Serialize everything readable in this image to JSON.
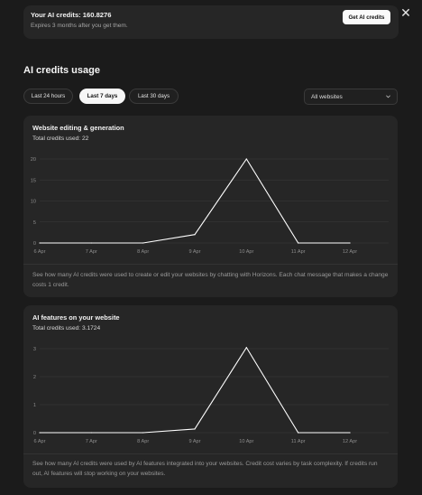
{
  "credits": {
    "title": "Your AI credits: 160.8276",
    "subtitle": "Expires 3 months after you get them.",
    "get_button": "Get AI credits"
  },
  "section_title": "AI credits usage",
  "ranges": [
    "Last 24 hours",
    "Last 7 days",
    "Last 30 days"
  ],
  "active_range": "Last 7 days",
  "website_filter": "All websites",
  "panels": [
    {
      "title": "Website editing & generation",
      "total": "Total credits used: 22",
      "description": "See how many AI credits were used to create or edit your websites by chatting with Horizons. Each chat message that makes a change costs 1 credit."
    },
    {
      "title": "AI features on your website",
      "total": "Total credits used: 3.1724",
      "description": "See how many AI credits were used by AI features integrated into your websites. Credit cost varies by task complexity. If credits run out, AI features will stop working on your websites."
    }
  ],
  "chart_data": [
    {
      "type": "line",
      "title": "Website editing & generation",
      "x": [
        "6 Apr",
        "7 Apr",
        "8 Apr",
        "9 Apr",
        "10 Apr",
        "11 Apr",
        "12 Apr"
      ],
      "series": [
        {
          "values": [
            0,
            0,
            0,
            2,
            20,
            0,
            0
          ]
        }
      ],
      "ylim": [
        0,
        20
      ],
      "yticks": [
        0,
        5,
        10,
        15,
        20
      ],
      "grid": true,
      "line_color": "#ffffff"
    },
    {
      "type": "line",
      "title": "AI features on your website",
      "x": [
        "6 Apr",
        "7 Apr",
        "8 Apr",
        "9 Apr",
        "10 Apr",
        "11 Apr",
        "12 Apr"
      ],
      "series": [
        {
          "values": [
            0,
            0,
            0,
            0.13,
            3.04,
            0,
            0
          ]
        }
      ],
      "ylim": [
        0,
        3
      ],
      "yticks": [
        0,
        1,
        2,
        3
      ],
      "grid": true,
      "line_color": "#ffffff"
    }
  ]
}
